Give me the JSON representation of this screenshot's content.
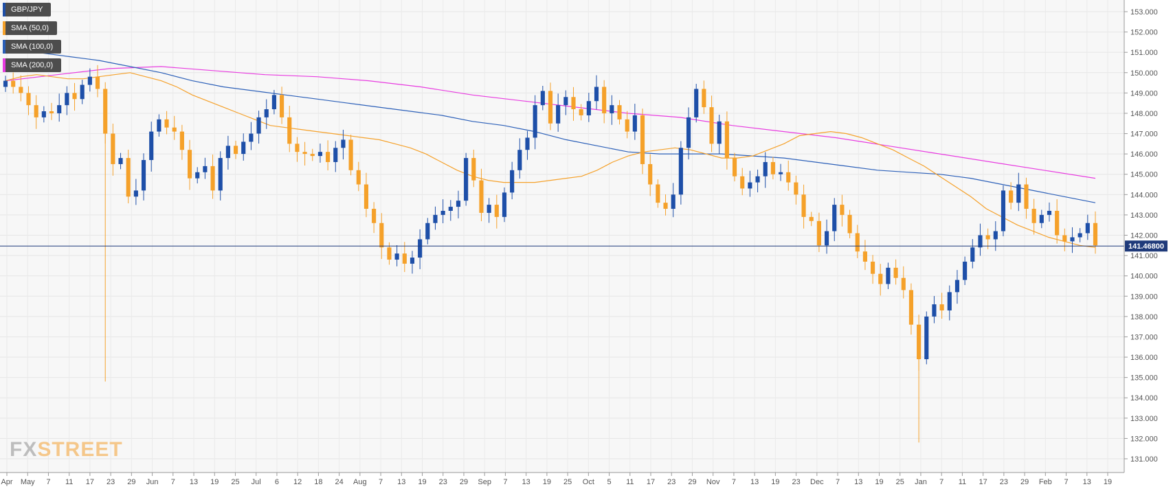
{
  "chart_data": {
    "type": "candlestick",
    "symbol": "GBP/JPY",
    "last_price": "141.46800",
    "ylim": [
      131.0,
      153.0
    ],
    "y_ticks": [
      "131.000",
      "132.000",
      "133.000",
      "134.000",
      "135.000",
      "136.000",
      "137.000",
      "138.000",
      "139.000",
      "140.000",
      "141.000",
      "142.000",
      "143.000",
      "144.000",
      "145.000",
      "146.000",
      "147.000",
      "148.000",
      "149.000",
      "150.000",
      "151.000",
      "152.000",
      "153.000"
    ],
    "x_ticks": [
      "Apr",
      "May",
      "7",
      "11",
      "17",
      "23",
      "29",
      "Jun",
      "7",
      "13",
      "19",
      "25",
      "Jul",
      "6",
      "12",
      "18",
      "24",
      "Aug",
      "7",
      "13",
      "19",
      "23",
      "29",
      "Sep",
      "7",
      "13",
      "19",
      "25",
      "Oct",
      "5",
      "11",
      "17",
      "23",
      "29",
      "Nov",
      "7",
      "13",
      "19",
      "23",
      "Dec",
      "7",
      "13",
      "19",
      "25",
      "Jan",
      "7",
      "11",
      "17",
      "23",
      "29",
      "Feb",
      "7",
      "13",
      "19"
    ],
    "colors": {
      "up": "#1e4fa8",
      "down": "#f5a12a",
      "sma50": "#f5a12a",
      "sma100": "#2b5fb8",
      "sma200": "#e83be0",
      "price_line": "#1f3a7a"
    },
    "legend": [
      {
        "label": "GBP/JPY",
        "color": "#1e4fa8"
      },
      {
        "label": "SMA (50,0)",
        "color": "#f5a12a"
      },
      {
        "label": "SMA (100,0)",
        "color": "#2b5fb8"
      },
      {
        "label": "SMA (200,0)",
        "color": "#e83be0"
      }
    ],
    "closes": [
      149.6,
      149.3,
      149.0,
      148.4,
      147.8,
      148.1,
      148.0,
      148.4,
      149.0,
      148.7,
      149.4,
      149.8,
      149.2,
      147.0,
      145.5,
      145.8,
      143.9,
      144.2,
      145.7,
      147.1,
      147.7,
      147.3,
      147.1,
      146.2,
      144.8,
      145.1,
      145.4,
      144.2,
      145.8,
      146.4,
      146.0,
      146.6,
      147.0,
      147.8,
      148.2,
      148.9,
      147.8,
      146.5,
      146.1,
      146.0,
      145.9,
      146.1,
      145.6,
      146.3,
      146.7,
      145.2,
      144.5,
      143.3,
      142.6,
      141.4,
      140.8,
      141.1,
      140.6,
      140.9,
      141.8,
      142.6,
      143.0,
      143.2,
      143.4,
      143.7,
      145.8,
      144.7,
      143.1,
      143.5,
      142.9,
      144.1,
      145.2,
      146.2,
      146.8,
      148.4,
      149.1,
      147.5,
      148.4,
      148.8,
      148.2,
      147.9,
      148.6,
      149.3,
      148.0,
      148.4,
      147.7,
      147.1,
      147.9,
      145.5,
      144.5,
      143.6,
      143.3,
      144.0,
      146.3,
      147.8,
      149.2,
      148.3,
      146.5,
      147.6,
      145.8,
      144.9,
      144.3,
      144.6,
      144.9,
      145.6,
      145.0,
      145.1,
      144.6,
      144.0,
      142.9,
      142.7,
      141.5,
      142.2,
      143.5,
      143.0,
      142.1,
      141.2,
      140.7,
      140.1,
      139.6,
      140.4,
      139.9,
      139.3,
      137.6,
      135.9,
      138.0,
      138.6,
      138.3,
      139.2,
      139.8,
      140.7,
      141.4,
      142.0,
      141.8,
      142.2,
      144.2,
      143.6,
      144.5,
      143.3,
      142.6,
      143.0,
      143.2,
      142.0,
      141.7,
      141.9,
      142.1,
      142.6,
      141.5
    ],
    "sma50": [
      149.6,
      149.8,
      149.9,
      149.8,
      149.7,
      149.7,
      149.8,
      149.9,
      150.0,
      149.8,
      149.6,
      149.3,
      148.9,
      148.6,
      148.3,
      148.0,
      147.7,
      147.4,
      147.3,
      147.2,
      147.1,
      147.0,
      146.9,
      146.8,
      146.7,
      146.5,
      146.3,
      146.0,
      145.6,
      145.2,
      144.9,
      144.7,
      144.6,
      144.6,
      144.6,
      144.7,
      144.8,
      144.9,
      145.2,
      145.6,
      145.9,
      146.1,
      146.2,
      146.3,
      146.2,
      146.0,
      145.8,
      145.8,
      145.9,
      146.2,
      146.5,
      146.9,
      147.0,
      147.1,
      147.0,
      146.8,
      146.5,
      146.2,
      145.8,
      145.4,
      144.9,
      144.4,
      143.9,
      143.3,
      142.9,
      142.5,
      142.2,
      141.9,
      141.7,
      141.5,
      141.4
    ],
    "sma100": [
      151.1,
      151.0,
      150.8,
      150.6,
      150.3,
      150.0,
      149.6,
      149.3,
      149.1,
      148.9,
      148.7,
      148.5,
      148.3,
      148.1,
      147.9,
      147.6,
      147.4,
      147.1,
      146.7,
      146.4,
      146.1,
      146.0,
      146.0,
      146.0,
      145.9,
      145.8,
      145.6,
      145.4,
      145.2,
      145.1,
      145.0,
      144.8,
      144.5,
      144.2,
      143.9,
      143.6
    ],
    "sma200": [
      149.6,
      149.9,
      150.2,
      150.3,
      150.1,
      149.9,
      149.8,
      149.6,
      149.3,
      148.9,
      148.6,
      148.3,
      148.0,
      147.8,
      147.4,
      147.1,
      146.8,
      146.4,
      146.0,
      145.6,
      145.2,
      144.8
    ],
    "ohlc_note": ""
  }
}
